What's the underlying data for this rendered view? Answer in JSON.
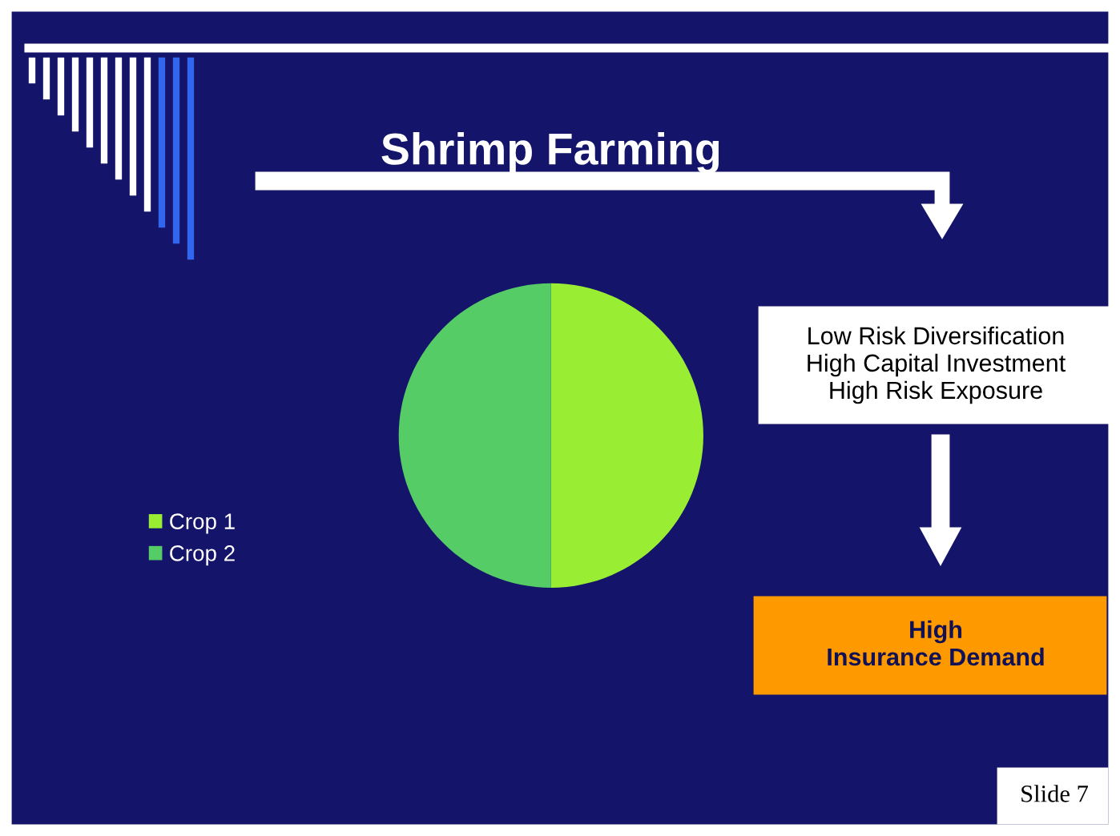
{
  "chart_data": {
    "type": "pie",
    "title": "Shrimp Farming",
    "categories": [
      "Crop 1",
      "Crop 2"
    ],
    "values": [
      50,
      50
    ],
    "colors": [
      "#99ee33",
      "#55cc66"
    ],
    "legend": "left",
    "annotations": [
      "Low Risk Diversification\nHigh Capital Investment\nHigh Risk Exposure",
      "High\nInsurance Demand",
      "Slide 7"
    ]
  }
}
